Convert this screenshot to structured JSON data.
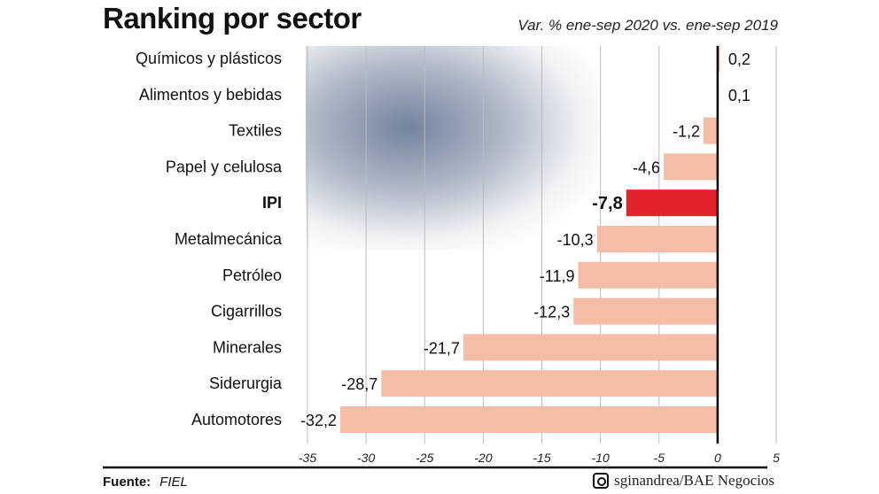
{
  "chart_data": {
    "type": "bar",
    "orientation": "horizontal",
    "title": "Ranking por sector",
    "subtitle": "Var. % ene-sep 2020 vs. ene-sep 2019",
    "categories": [
      "Químicos y plásticos",
      "Alimentos y bebidas",
      "Textiles",
      "Papel y celulosa",
      "IPI",
      "Metalmecánica",
      "Petróleo",
      "Cigarrillos",
      "Minerales",
      "Siderurgia",
      "Automotores"
    ],
    "values": [
      0.2,
      0.1,
      -1.2,
      -4.6,
      -7.8,
      -10.3,
      -11.9,
      -12.3,
      -21.7,
      -28.7,
      -32.2
    ],
    "value_labels": [
      "0,2",
      "0,1",
      "-1,2",
      "-4,6",
      "-7,8",
      "-10,3",
      "-11,9",
      "-12,3",
      "-21,7",
      "-28,7",
      "-32,2"
    ],
    "highlight": "IPI",
    "xlim": [
      -35,
      5
    ],
    "xticks": [
      -35,
      -30,
      -25,
      -20,
      -15,
      -10,
      -5,
      0,
      5
    ],
    "xtick_labels": [
      "-35",
      "-30",
      "-25",
      "-20",
      "-15",
      "-10",
      "-5",
      "0",
      "5"
    ],
    "grid": true,
    "colors": {
      "bar": "#f5bca6",
      "highlight": "#e3222b",
      "grid": "#bbbbbb"
    }
  },
  "footer": {
    "source_label": "Fuente:",
    "source": "FIEL",
    "credit": "sginandrea/BAE Negocios",
    "credit_icon": "instagram-icon"
  }
}
